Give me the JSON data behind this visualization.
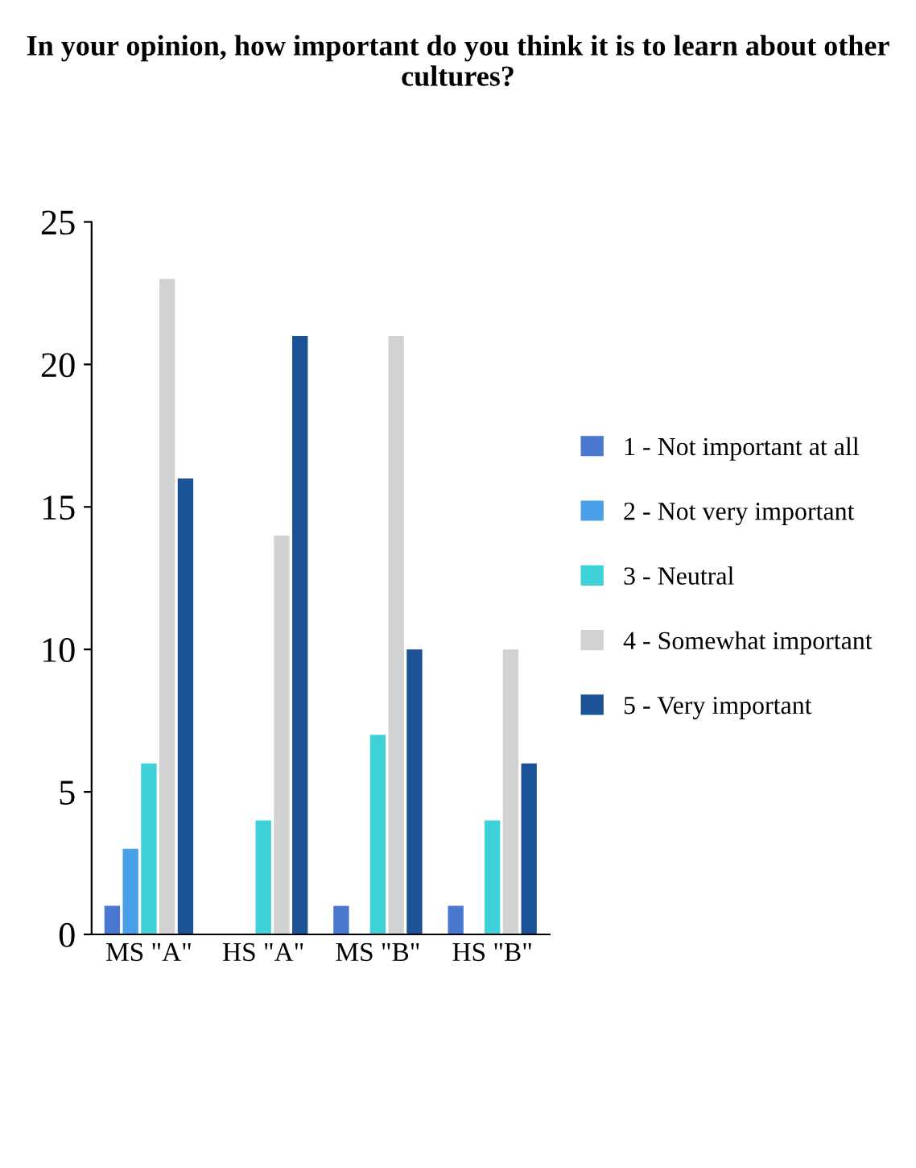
{
  "chart_data": {
    "type": "bar",
    "title": "In your opinion, how important do you think it is to learn about other cultures?",
    "categories": [
      "MS \"A\"",
      "HS \"A\"",
      "MS \"B\"",
      "HS \"B\""
    ],
    "series": [
      {
        "name": "1 - Not important at all",
        "color": "#4a78d0",
        "values": [
          1,
          0,
          1,
          1
        ]
      },
      {
        "name": "2 - Not very important",
        "color": "#4aa0e8",
        "values": [
          3,
          0,
          0,
          0
        ]
      },
      {
        "name": "3 - Neutral",
        "color": "#3ed2d8",
        "values": [
          6,
          4,
          7,
          4
        ]
      },
      {
        "name": "4 - Somewhat important",
        "color": "#d2d2d2",
        "values": [
          23,
          14,
          21,
          10
        ]
      },
      {
        "name": "5 - Very important",
        "color": "#1c5396",
        "values": [
          16,
          21,
          10,
          6
        ]
      }
    ],
    "ylim": [
      0,
      25
    ],
    "yticks": [
      0,
      5,
      10,
      15,
      20,
      25
    ],
    "grid": false,
    "legend": "right"
  }
}
